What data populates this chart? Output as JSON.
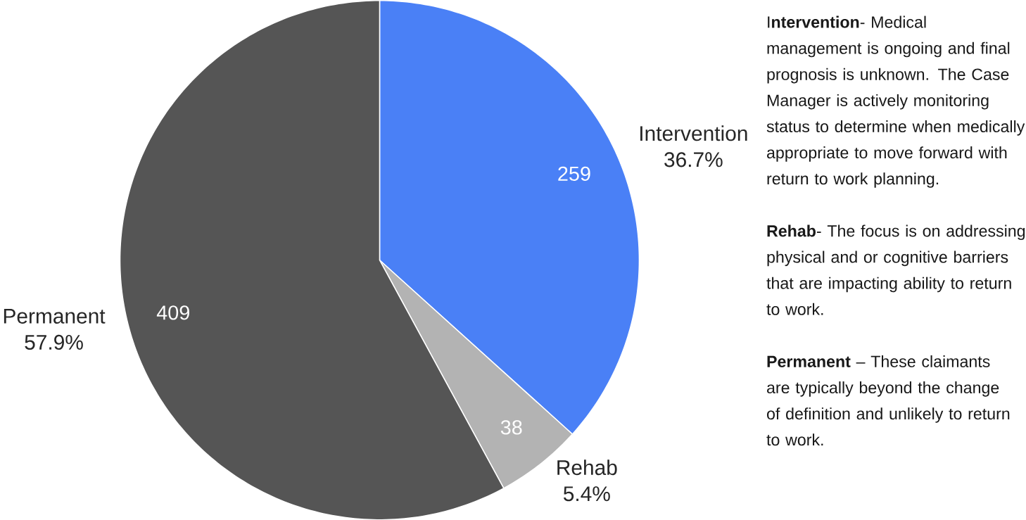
{
  "chart_data": {
    "type": "pie",
    "categories": [
      "Intervention",
      "Rehab",
      "Permanent"
    ],
    "values": [
      259,
      38,
      409
    ],
    "colors": [
      "#4a80f6",
      "#b3b3b3",
      "#555555"
    ],
    "data_labels": true,
    "annotations": [
      {
        "text": "36.7%",
        "x": "Intervention"
      },
      {
        "text": "5.4%",
        "x": "Rehab"
      },
      {
        "text": "57.9%",
        "x": "Permanent"
      },
      "I**ntervention**- Medical management is ongoing and final prognosis is unknown. The Case Manager is actively monitoring status to determine when medically appropriate to move forward with return to work planning.",
      "**Rehab**- The focus is on addressing physical and or cognitive barriers that are impacting ability to return to work.",
      "**Permanent** – These claimants are typically beyond the change of definition and unlikely to return to work."
    ]
  }
}
